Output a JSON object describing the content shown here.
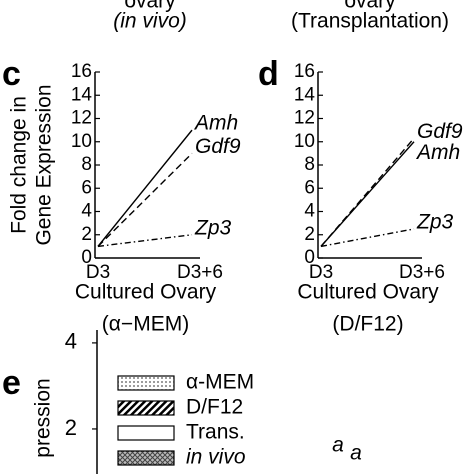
{
  "header": {
    "left_line1": "ovary",
    "left_line2": "(in vivo)",
    "right_line1": "ovary",
    "right_line2": "(Transplantation)"
  },
  "chart_data": [
    {
      "panel": "c",
      "type": "line",
      "y_label": [
        "Fold change in",
        "Gene Expression"
      ],
      "x_label": "Cultured Ovary",
      "subtitle": "(α−MEM)",
      "categories": [
        "D3",
        "D3+6"
      ],
      "series": [
        {
          "name": "Amh",
          "color": "#000000",
          "style": "solid",
          "values": [
            1,
            11
          ]
        },
        {
          "name": "Gdf9",
          "color": "#000000",
          "style": "dashed",
          "values": [
            1,
            9
          ]
        },
        {
          "name": "Zp3",
          "color": "#000000",
          "style": "dashdot",
          "values": [
            1,
            2
          ]
        }
      ],
      "ylim": [
        0,
        16
      ],
      "yticks": [
        0,
        2,
        4,
        6,
        8,
        10,
        12,
        14,
        16
      ]
    },
    {
      "panel": "d",
      "type": "line",
      "x_label": "Cultured Ovary",
      "subtitle": "(D/F12)",
      "categories": [
        "D3",
        "D3+6"
      ],
      "series": [
        {
          "name": "Gdf9",
          "color": "#000000",
          "style": "dashed",
          "values": [
            1,
            10.3
          ]
        },
        {
          "name": "Amh",
          "color": "#000000",
          "style": "solid",
          "values": [
            1,
            10
          ]
        },
        {
          "name": "Zp3",
          "color": "#000000",
          "style": "dashdot",
          "values": [
            1,
            2.5
          ]
        }
      ],
      "ylim": [
        0,
        16
      ],
      "yticks": [
        0,
        2,
        4,
        6,
        8,
        10,
        12,
        14,
        16
      ]
    },
    {
      "panel": "e",
      "type": "bar",
      "y_label": "pression",
      "series": [
        {
          "name": "α-MEM",
          "pattern": "dots"
        },
        {
          "name": "D/F12",
          "pattern": "hatch"
        },
        {
          "name": "Trans.",
          "pattern": "plain"
        },
        {
          "name": "in vivo",
          "pattern": "cross"
        }
      ],
      "legend": "top",
      "annotations": [
        "a",
        "a"
      ],
      "ylim": [
        0,
        4.3
      ],
      "yticks": [
        2,
        4
      ]
    }
  ]
}
